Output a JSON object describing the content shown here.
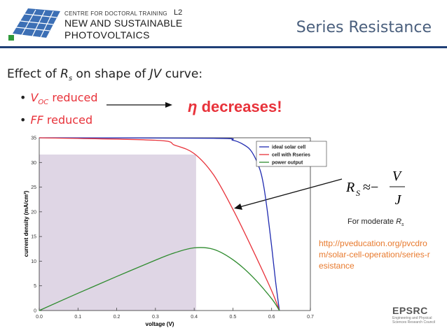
{
  "header": {
    "org_line1": "CENTRE FOR DOCTORAL TRAINING",
    "org_line2": "NEW AND SUSTAINABLE",
    "org_line3": "PHOTOVOLTAICS",
    "lecture": "L2",
    "title": "Series Resistance"
  },
  "content": {
    "heading_pre": "Effect of ",
    "heading_var": "R",
    "heading_sub": "s",
    "heading_mid": " on shape of ",
    "heading_jv": "JV",
    "heading_post": " curve:",
    "bullet1_var": "V",
    "bullet1_sub": "OC",
    "bullet1_text": " reduced",
    "bullet2_var": "FF",
    "bullet2_text": " reduced",
    "conclusion_symbol": "η",
    "conclusion_text": " decreases!",
    "formula_lhs": "R",
    "formula_lhs_sub": "S",
    "formula_op": "≈−",
    "formula_num": "V",
    "formula_den": "J",
    "note_pre": "For moderate ",
    "note_var": "R",
    "note_sub": "s",
    "link": "http://pvedu­cation.org/pvcdrom/solar-cell-operation/series-resistance",
    "epsrc_name": "EPSRC",
    "epsrc_sub": "Engineering and Physical Sciences Research Council"
  },
  "chart_data": {
    "type": "line",
    "xlabel": "voltage (V)",
    "ylabel": "current density (mA/cm²)",
    "xlim": [
      0,
      0.7
    ],
    "ylim": [
      0,
      35
    ],
    "x_ticks": [
      "0.0",
      "0.1",
      "0.2",
      "0.3",
      "0.4",
      "0.5",
      "0.6",
      "0.7"
    ],
    "y_ticks": [
      "0",
      "5",
      "10",
      "15",
      "20",
      "25",
      "30",
      "35"
    ],
    "legend_position": "top-right",
    "series": [
      {
        "name": "ideal solar cell",
        "color": "#1f2ab0",
        "x": [
          0,
          0.45,
          0.5,
          0.53,
          0.55,
          0.57,
          0.58,
          0.59,
          0.6,
          0.61,
          0.62
        ],
        "y": [
          35,
          34.9,
          34.5,
          33.5,
          32,
          28.5,
          25,
          19.5,
          13,
          6,
          0
        ]
      },
      {
        "name": "cell with Rseries",
        "color": "#e8323a",
        "x": [
          0,
          0.3,
          0.35,
          0.4,
          0.45,
          0.5,
          0.55,
          0.6,
          0.62
        ],
        "y": [
          35,
          34.5,
          33.5,
          31.8,
          27.5,
          20.5,
          12.5,
          4,
          0
        ]
      },
      {
        "name": "power output",
        "color": "#2e8b2e",
        "x": [
          0,
          0.1,
          0.2,
          0.3,
          0.35,
          0.4,
          0.45,
          0.5,
          0.55,
          0.6,
          0.62
        ],
        "y": [
          0,
          3.5,
          6.9,
          10.2,
          11.7,
          12.7,
          12.4,
          10.3,
          6.9,
          2.4,
          0
        ]
      }
    ],
    "max_power_rectangle": {
      "v": 0.405,
      "j": 31.6
    }
  }
}
